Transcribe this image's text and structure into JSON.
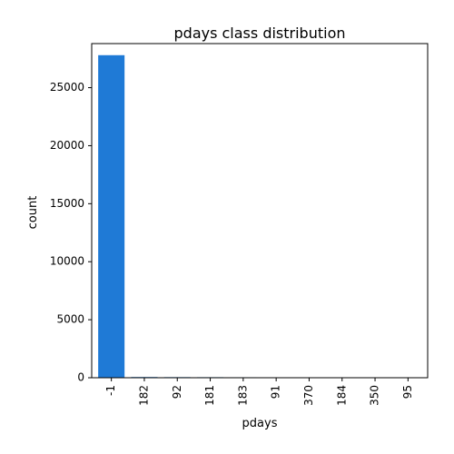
{
  "chart_data": {
    "type": "bar",
    "title": "pdays class distribution",
    "xlabel": "pdays",
    "ylabel": "count",
    "categories": [
      "-1",
      "182",
      "92",
      "181",
      "183",
      "91",
      "370",
      "184",
      "350",
      "95"
    ],
    "values": [
      27800,
      60,
      50,
      45,
      40,
      35,
      15,
      14,
      13,
      12
    ],
    "ylim": [
      0,
      28800
    ],
    "yticks": [
      0,
      5000,
      10000,
      15000,
      20000,
      25000
    ],
    "grid": false,
    "bar_color": "#1f7ad6"
  }
}
